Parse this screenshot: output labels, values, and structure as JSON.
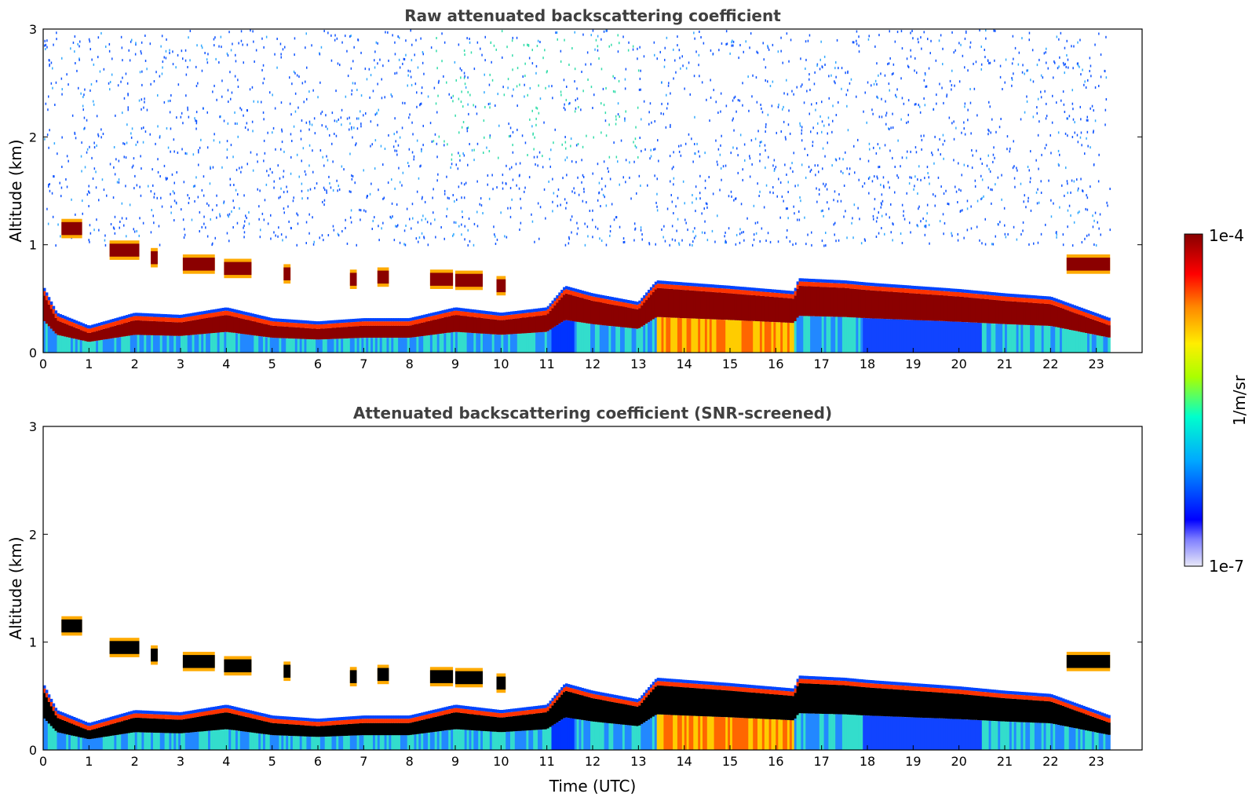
{
  "chart_data": [
    {
      "type": "heatmap",
      "title": "Raw attenuated backscattering coefficient",
      "xlabel": "",
      "ylabel": "Altitude (km)",
      "xlim": [
        0,
        24
      ],
      "ylim": [
        0,
        3
      ],
      "xticks": [
        "0",
        "1",
        "2",
        "3",
        "4",
        "5",
        "6",
        "7",
        "8",
        "9",
        "10",
        "11",
        "12",
        "13",
        "14",
        "15",
        "16",
        "17",
        "18",
        "19",
        "20",
        "21",
        "22",
        "23"
      ],
      "yticks": [
        "0",
        "1",
        "2",
        "3"
      ],
      "screened": false,
      "data_end_hour": 23.3,
      "boundary_layer_top_km": [
        {
          "t": 0.0,
          "z": 0.55
        },
        {
          "t": 0.3,
          "z": 0.3
        },
        {
          "t": 1.0,
          "z": 0.18
        },
        {
          "t": 2.0,
          "z": 0.3
        },
        {
          "t": 3.0,
          "z": 0.28
        },
        {
          "t": 4.0,
          "z": 0.35
        },
        {
          "t": 5.0,
          "z": 0.25
        },
        {
          "t": 6.0,
          "z": 0.22
        },
        {
          "t": 7.0,
          "z": 0.25
        },
        {
          "t": 8.0,
          "z": 0.25
        },
        {
          "t": 9.0,
          "z": 0.35
        },
        {
          "t": 10.0,
          "z": 0.3
        },
        {
          "t": 11.0,
          "z": 0.35
        },
        {
          "t": 11.4,
          "z": 0.55
        },
        {
          "t": 12.0,
          "z": 0.48
        },
        {
          "t": 13.0,
          "z": 0.4
        },
        {
          "t": 13.4,
          "z": 0.6
        },
        {
          "t": 15.0,
          "z": 0.55
        },
        {
          "t": 16.4,
          "z": 0.5
        },
        {
          "t": 16.5,
          "z": 0.62
        },
        {
          "t": 17.5,
          "z": 0.6
        },
        {
          "t": 18.0,
          "z": 0.58
        },
        {
          "t": 20.0,
          "z": 0.52
        },
        {
          "t": 21.0,
          "z": 0.48
        },
        {
          "t": 22.0,
          "z": 0.45
        },
        {
          "t": 23.3,
          "z": 0.25
        }
      ],
      "cloud_layers": [
        {
          "t0": 0.4,
          "t1": 0.85,
          "z": 1.15
        },
        {
          "t0": 1.45,
          "t1": 2.1,
          "z": 0.95
        },
        {
          "t0": 2.35,
          "t1": 2.5,
          "z": 0.88
        },
        {
          "t0": 3.05,
          "t1": 3.75,
          "z": 0.82
        },
        {
          "t0": 3.95,
          "t1": 4.55,
          "z": 0.78
        },
        {
          "t0": 5.25,
          "t1": 5.4,
          "z": 0.73
        },
        {
          "t0": 6.7,
          "t1": 6.85,
          "z": 0.68
        },
        {
          "t0": 7.3,
          "t1": 7.55,
          "z": 0.7
        },
        {
          "t0": 8.45,
          "t1": 8.95,
          "z": 0.68
        },
        {
          "t0": 9.0,
          "t1": 9.6,
          "z": 0.67
        },
        {
          "t0": 9.9,
          "t1": 10.1,
          "z": 0.62
        },
        {
          "t0": 22.35,
          "t1": 23.3,
          "z": 0.82
        }
      ]
    },
    {
      "type": "heatmap",
      "title": "Attenuated backscattering coefficient (SNR-screened)",
      "xlabel": "Time (UTC)",
      "ylabel": "Altitude (km)",
      "xlim": [
        0,
        24
      ],
      "ylim": [
        0,
        3
      ],
      "xticks": [
        "0",
        "1",
        "2",
        "3",
        "4",
        "5",
        "6",
        "7",
        "8",
        "9",
        "10",
        "11",
        "12",
        "13",
        "14",
        "15",
        "16",
        "17",
        "18",
        "19",
        "20",
        "21",
        "22",
        "23"
      ],
      "yticks": [
        "0",
        "1",
        "2",
        "3"
      ],
      "screened": true,
      "data_end_hour": 23.3
    }
  ],
  "colorbar": {
    "label": "1/m/sr",
    "max_label": "1e-4",
    "min_label": "1e-7",
    "colors": [
      "#e8e8f8",
      "#0000ff",
      "#00aaff",
      "#00ffcc",
      "#aaff00",
      "#ffee00",
      "#ff8800",
      "#ff0000",
      "#880000"
    ]
  }
}
